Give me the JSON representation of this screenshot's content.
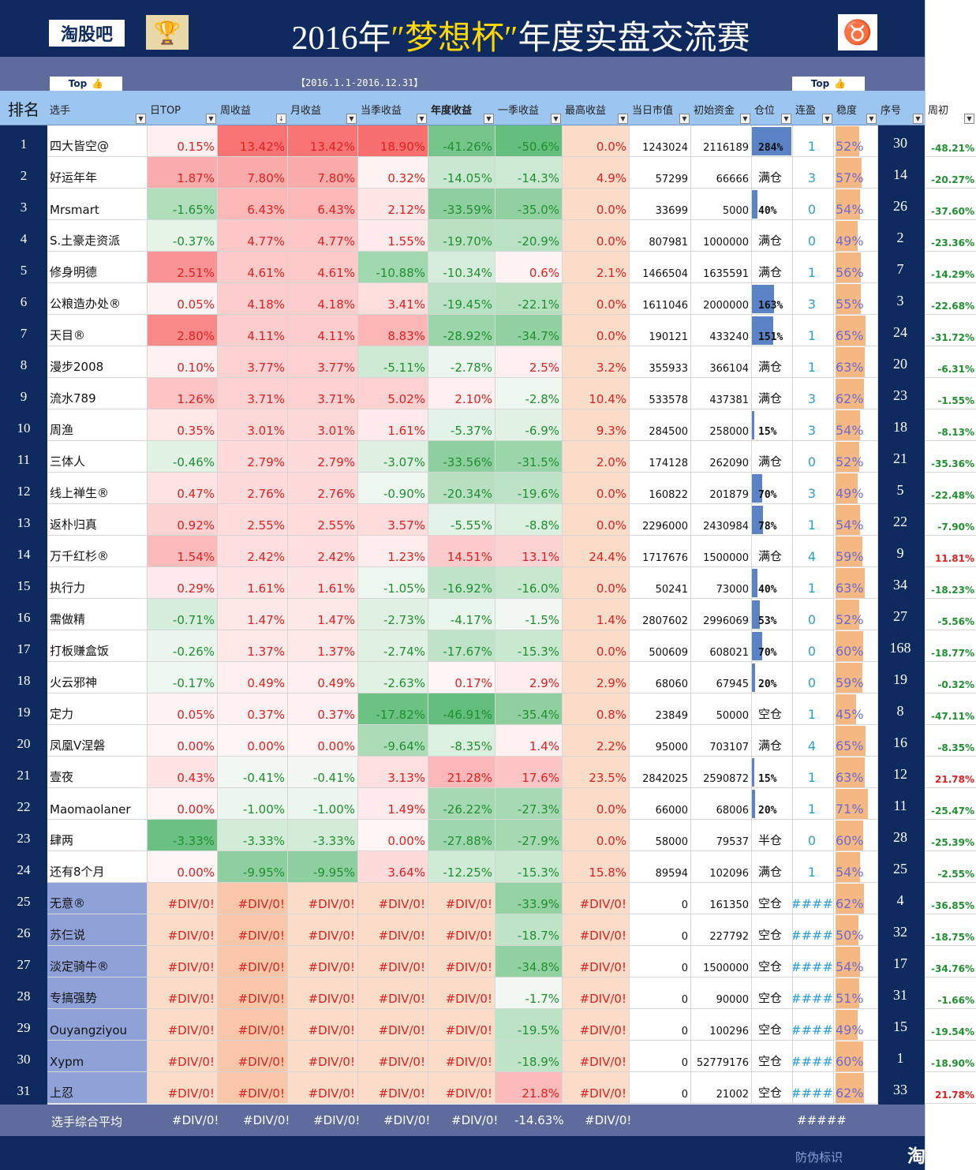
{
  "banner": {
    "logo_left": "淘股吧",
    "title_prefix": "2016年",
    "title_highlight": "″梦想杯″",
    "title_suffix": "年度实盘交流赛",
    "trophy_icon": "trophy-icon",
    "bull_icon": "bull-logo-icon"
  },
  "subbar": {
    "top_button_left": "Top",
    "date_range": "【2016.1.1-2016.12.31】",
    "top_button_right": "Top"
  },
  "headers": {
    "rank": "排名",
    "name": "选手",
    "day": "日TOP",
    "week": "周收益",
    "month": "月收益",
    "quarter": "当季收益",
    "year": "年度收益",
    "season1": "一季收益",
    "max": "最高收益",
    "market_value": "当日市值",
    "initial_capital": "初始资金",
    "position": "仓位",
    "win_streak": "连盈",
    "stability": "稳度",
    "seq": "序号",
    "week_start": "周初"
  },
  "rows": [
    {
      "rank": "1",
      "name": "四大皆空@",
      "day": "0.15%",
      "week": "13.42%",
      "month": "13.42%",
      "quarter": "18.90%",
      "year": "-41.26%",
      "s1": "-50.6%",
      "max": "0.0%",
      "mv": "1243024",
      "ic": "2116189",
      "pos": "284%",
      "posv": 1.0,
      "win": "1",
      "stab": "52%",
      "stabv": 0.52,
      "seq": "30",
      "wi": "-48.21%"
    },
    {
      "rank": "2",
      "name": "好运年年",
      "day": "1.87%",
      "week": "7.80%",
      "month": "7.80%",
      "quarter": "0.32%",
      "year": "-14.05%",
      "s1": "-14.3%",
      "max": "4.9%",
      "mv": "57299",
      "ic": "66666",
      "pos": "满仓",
      "posv": 0,
      "win": "3",
      "stab": "57%",
      "stabv": 0.57,
      "seq": "14",
      "wi": "-20.27%"
    },
    {
      "rank": "3",
      "name": "Mrsmart",
      "day": "-1.65%",
      "week": "6.43%",
      "month": "6.43%",
      "quarter": "2.12%",
      "year": "-33.59%",
      "s1": "-35.0%",
      "max": "0.0%",
      "mv": "33699",
      "ic": "5000",
      "pos": "40%",
      "posv": 0.14,
      "win": "0",
      "stab": "54%",
      "stabv": 0.54,
      "seq": "26",
      "wi": "-37.60%"
    },
    {
      "rank": "4",
      "name": "S.土豪走资派",
      "day": "-0.37%",
      "week": "4.77%",
      "month": "4.77%",
      "quarter": "1.55%",
      "year": "-19.70%",
      "s1": "-20.9%",
      "max": "0.0%",
      "mv": "807981",
      "ic": "1000000",
      "pos": "满仓",
      "posv": 0,
      "win": "0",
      "stab": "49%",
      "stabv": 0.49,
      "seq": "2",
      "wi": "-23.36%"
    },
    {
      "rank": "5",
      "name": "修身明德",
      "day": "2.51%",
      "week": "4.61%",
      "month": "4.61%",
      "quarter": "-10.88%",
      "year": "-10.34%",
      "s1": "0.6%",
      "max": "2.1%",
      "mv": "1466504",
      "ic": "1635591",
      "pos": "满仓",
      "posv": 0,
      "win": "1",
      "stab": "56%",
      "stabv": 0.56,
      "seq": "7",
      "wi": "-14.29%"
    },
    {
      "rank": "6",
      "name": "公粮造办处®",
      "day": "0.05%",
      "week": "4.18%",
      "month": "4.18%",
      "quarter": "3.41%",
      "year": "-19.45%",
      "s1": "-22.1%",
      "max": "0.0%",
      "mv": "1611046",
      "ic": "2000000",
      "pos": "163%",
      "posv": 0.57,
      "win": "3",
      "stab": "55%",
      "stabv": 0.55,
      "seq": "3",
      "wi": "-22.68%"
    },
    {
      "rank": "7",
      "name": "天目®",
      "day": "2.80%",
      "week": "4.11%",
      "month": "4.11%",
      "quarter": "8.83%",
      "year": "-28.92%",
      "s1": "-34.7%",
      "max": "0.0%",
      "mv": "190121",
      "ic": "433240",
      "pos": "151%",
      "posv": 0.53,
      "win": "1",
      "stab": "65%",
      "stabv": 0.65,
      "seq": "24",
      "wi": "-31.72%"
    },
    {
      "rank": "8",
      "name": "漫步2008",
      "day": "0.10%",
      "week": "3.77%",
      "month": "3.77%",
      "quarter": "-5.11%",
      "year": "-2.78%",
      "s1": "2.5%",
      "max": "3.2%",
      "mv": "355933",
      "ic": "366104",
      "pos": "满仓",
      "posv": 0,
      "win": "1",
      "stab": "63%",
      "stabv": 0.63,
      "seq": "20",
      "wi": "-6.31%"
    },
    {
      "rank": "9",
      "name": "流水789",
      "day": "1.26%",
      "week": "3.71%",
      "month": "3.71%",
      "quarter": "5.02%",
      "year": "2.10%",
      "s1": "-2.8%",
      "max": "10.4%",
      "mv": "533578",
      "ic": "437381",
      "pos": "满仓",
      "posv": 0,
      "win": "3",
      "stab": "62%",
      "stabv": 0.62,
      "seq": "23",
      "wi": "-1.55%"
    },
    {
      "rank": "10",
      "name": "周渔",
      "day": "0.35%",
      "week": "3.01%",
      "month": "3.01%",
      "quarter": "1.61%",
      "year": "-5.37%",
      "s1": "-6.9%",
      "max": "9.3%",
      "mv": "284500",
      "ic": "258000",
      "pos": "15%",
      "posv": 0.05,
      "win": "3",
      "stab": "54%",
      "stabv": 0.54,
      "seq": "18",
      "wi": "-8.13%"
    },
    {
      "rank": "11",
      "name": "三体人",
      "day": "-0.46%",
      "week": "2.79%",
      "month": "2.79%",
      "quarter": "-3.07%",
      "year": "-33.56%",
      "s1": "-31.5%",
      "max": "2.0%",
      "mv": "174128",
      "ic": "262090",
      "pos": "满仓",
      "posv": 0,
      "win": "0",
      "stab": "52%",
      "stabv": 0.52,
      "seq": "21",
      "wi": "-35.36%"
    },
    {
      "rank": "12",
      "name": "线上禅生®",
      "day": "0.47%",
      "week": "2.76%",
      "month": "2.76%",
      "quarter": "-0.90%",
      "year": "-20.34%",
      "s1": "-19.6%",
      "max": "0.0%",
      "mv": "160822",
      "ic": "201879",
      "pos": "70%",
      "posv": 0.25,
      "win": "3",
      "stab": "49%",
      "stabv": 0.49,
      "seq": "5",
      "wi": "-22.48%"
    },
    {
      "rank": "13",
      "name": "返朴归真",
      "day": "0.92%",
      "week": "2.55%",
      "month": "2.55%",
      "quarter": "3.57%",
      "year": "-5.55%",
      "s1": "-8.8%",
      "max": "0.0%",
      "mv": "2296000",
      "ic": "2430984",
      "pos": "78%",
      "posv": 0.27,
      "win": "1",
      "stab": "54%",
      "stabv": 0.54,
      "seq": "22",
      "wi": "-7.90%"
    },
    {
      "rank": "14",
      "name": "万千红杉®",
      "day": "1.54%",
      "week": "2.42%",
      "month": "2.42%",
      "quarter": "1.23%",
      "year": "14.51%",
      "s1": "13.1%",
      "max": "24.4%",
      "mv": "1717676",
      "ic": "1500000",
      "pos": "满仓",
      "posv": 0,
      "win": "4",
      "stab": "59%",
      "stabv": 0.59,
      "seq": "9",
      "wi": "11.81%"
    },
    {
      "rank": "15",
      "name": "执行力",
      "day": "0.29%",
      "week": "1.61%",
      "month": "1.61%",
      "quarter": "-1.05%",
      "year": "-16.92%",
      "s1": "-16.0%",
      "max": "0.0%",
      "mv": "50241",
      "ic": "73000",
      "pos": "40%",
      "posv": 0.14,
      "win": "1",
      "stab": "63%",
      "stabv": 0.63,
      "seq": "34",
      "wi": "-18.23%"
    },
    {
      "rank": "16",
      "name": "需做精",
      "day": "-0.71%",
      "week": "1.47%",
      "month": "1.47%",
      "quarter": "-2.73%",
      "year": "-4.17%",
      "s1": "-1.5%",
      "max": "1.4%",
      "mv": "2807602",
      "ic": "2996069",
      "pos": "53%",
      "posv": 0.19,
      "win": "0",
      "stab": "52%",
      "stabv": 0.52,
      "seq": "27",
      "wi": "-5.56%"
    },
    {
      "rank": "17",
      "name": "打板赚盒饭",
      "day": "-0.26%",
      "week": "1.37%",
      "month": "1.37%",
      "quarter": "-2.74%",
      "year": "-17.67%",
      "s1": "-15.3%",
      "max": "0.0%",
      "mv": "500609",
      "ic": "608021",
      "pos": "70%",
      "posv": 0.25,
      "win": "0",
      "stab": "60%",
      "stabv": 0.6,
      "seq": "168",
      "wi": "-18.77%"
    },
    {
      "rank": "18",
      "name": "火云邪神",
      "day": "-0.17%",
      "week": "0.49%",
      "month": "0.49%",
      "quarter": "-2.63%",
      "year": "0.17%",
      "s1": "2.9%",
      "max": "2.9%",
      "mv": "68060",
      "ic": "67945",
      "pos": "20%",
      "posv": 0.07,
      "win": "0",
      "stab": "59%",
      "stabv": 0.59,
      "seq": "19",
      "wi": "-0.32%"
    },
    {
      "rank": "19",
      "name": "定力",
      "day": "0.05%",
      "week": "0.37%",
      "month": "0.37%",
      "quarter": "-17.82%",
      "year": "-46.91%",
      "s1": "-35.4%",
      "max": "0.8%",
      "mv": "23849",
      "ic": "50000",
      "pos": "空仓",
      "posv": 0,
      "win": "1",
      "stab": "45%",
      "stabv": 0.45,
      "seq": "8",
      "wi": "-47.11%"
    },
    {
      "rank": "20",
      "name": "凤凰V涅磐",
      "day": "0.00%",
      "week": "0.00%",
      "month": "0.00%",
      "quarter": "-9.64%",
      "year": "-8.35%",
      "s1": "1.4%",
      "max": "2.2%",
      "mv": "95000",
      "ic": "703107",
      "pos": "满仓",
      "posv": 0,
      "win": "4",
      "stab": "65%",
      "stabv": 0.65,
      "seq": "16",
      "wi": "-8.35%"
    },
    {
      "rank": "21",
      "name": "壹夜",
      "day": "0.43%",
      "week": "-0.41%",
      "month": "-0.41%",
      "quarter": "3.13%",
      "year": "21.28%",
      "s1": "17.6%",
      "max": "23.5%",
      "mv": "2842025",
      "ic": "2590872",
      "pos": "15%",
      "posv": 0.05,
      "win": "1",
      "stab": "63%",
      "stabv": 0.63,
      "seq": "12",
      "wi": "21.78%"
    },
    {
      "rank": "22",
      "name": "Maomaolaner",
      "day": "0.00%",
      "week": "-1.00%",
      "month": "-1.00%",
      "quarter": "1.49%",
      "year": "-26.22%",
      "s1": "-27.3%",
      "max": "0.0%",
      "mv": "66000",
      "ic": "68006",
      "pos": "20%",
      "posv": 0.07,
      "win": "1",
      "stab": "71%",
      "stabv": 0.71,
      "seq": "11",
      "wi": "-25.47%"
    },
    {
      "rank": "23",
      "name": "肆两",
      "day": "-3.33%",
      "week": "-3.33%",
      "month": "-3.33%",
      "quarter": "0.00%",
      "year": "-27.88%",
      "s1": "-27.9%",
      "max": "0.0%",
      "mv": "58000",
      "ic": "79537",
      "pos": "半仓",
      "posv": 0,
      "win": "0",
      "stab": "60%",
      "stabv": 0.6,
      "seq": "28",
      "wi": "-25.39%"
    },
    {
      "rank": "24",
      "name": "还有8个月",
      "day": "0.00%",
      "week": "-9.95%",
      "month": "-9.95%",
      "quarter": "3.64%",
      "year": "-12.25%",
      "s1": "-15.3%",
      "max": "15.8%",
      "mv": "89594",
      "ic": "102096",
      "pos": "满仓",
      "posv": 0,
      "win": "1",
      "stab": "54%",
      "stabv": 0.54,
      "seq": "25",
      "wi": "-2.55%"
    },
    {
      "rank": "25",
      "name": "无意®",
      "day": "#DIV/0!",
      "week": "#DIV/0!",
      "month": "#DIV/0!",
      "quarter": "#DIV/0!",
      "year": "#DIV/0!",
      "s1": "-33.9%",
      "max": "#DIV/0!",
      "mv": "0",
      "ic": "161350",
      "pos": "空仓",
      "posv": 0,
      "win": "####",
      "stab": "62%",
      "stabv": 0.62,
      "seq": "4",
      "wi": "-36.85%"
    },
    {
      "rank": "26",
      "name": "苏仨说",
      "day": "#DIV/0!",
      "week": "#DIV/0!",
      "month": "#DIV/0!",
      "quarter": "#DIV/0!",
      "year": "#DIV/0!",
      "s1": "-18.7%",
      "max": "#DIV/0!",
      "mv": "0",
      "ic": "227792",
      "pos": "空仓",
      "posv": 0,
      "win": "####",
      "stab": "50%",
      "stabv": 0.5,
      "seq": "32",
      "wi": "-18.75%"
    },
    {
      "rank": "27",
      "name": "淡定骑牛®",
      "day": "#DIV/0!",
      "week": "#DIV/0!",
      "month": "#DIV/0!",
      "quarter": "#DIV/0!",
      "year": "#DIV/0!",
      "s1": "-34.8%",
      "max": "#DIV/0!",
      "mv": "0",
      "ic": "1500000",
      "pos": "空仓",
      "posv": 0,
      "win": "####",
      "stab": "54%",
      "stabv": 0.54,
      "seq": "17",
      "wi": "-34.76%"
    },
    {
      "rank": "28",
      "name": "专搞强势",
      "day": "#DIV/0!",
      "week": "#DIV/0!",
      "month": "#DIV/0!",
      "quarter": "#DIV/0!",
      "year": "#DIV/0!",
      "s1": "-1.7%",
      "max": "#DIV/0!",
      "mv": "0",
      "ic": "90000",
      "pos": "空仓",
      "posv": 0,
      "win": "####",
      "stab": "51%",
      "stabv": 0.51,
      "seq": "31",
      "wi": "-1.66%"
    },
    {
      "rank": "29",
      "name": "Ouyangziyou",
      "day": "#DIV/0!",
      "week": "#DIV/0!",
      "month": "#DIV/0!",
      "quarter": "#DIV/0!",
      "year": "#DIV/0!",
      "s1": "-19.5%",
      "max": "#DIV/0!",
      "mv": "0",
      "ic": "100296",
      "pos": "空仓",
      "posv": 0,
      "win": "####",
      "stab": "49%",
      "stabv": 0.49,
      "seq": "15",
      "wi": "-19.54%"
    },
    {
      "rank": "30",
      "name": "Xypm",
      "day": "#DIV/0!",
      "week": "#DIV/0!",
      "month": "#DIV/0!",
      "quarter": "#DIV/0!",
      "year": "#DIV/0!",
      "s1": "-18.9%",
      "max": "#DIV/0!",
      "mv": "0",
      "ic": "52779176",
      "pos": "空仓",
      "posv": 0,
      "win": "####",
      "stab": "60%",
      "stabv": 0.6,
      "seq": "1",
      "wi": "-18.90%"
    },
    {
      "rank": "31",
      "name": "上忍",
      "day": "#DIV/0!",
      "week": "#DIV/0!",
      "month": "#DIV/0!",
      "quarter": "#DIV/0!",
      "year": "#DIV/0!",
      "s1": "21.8%",
      "max": "#DIV/0!",
      "mv": "0",
      "ic": "21002",
      "pos": "空仓",
      "posv": 0,
      "win": "####",
      "stab": "62%",
      "stabv": 0.62,
      "seq": "33",
      "wi": "21.78%"
    }
  ],
  "footer": {
    "label": "选手综合平均",
    "day": "#DIV/0!",
    "week": "#DIV/0!",
    "month": "#DIV/0!",
    "quarter": "#DIV/0!",
    "year": "#DIV/0!",
    "s1": "-14.63%",
    "max": "#DIV/0!",
    "win": "#####"
  },
  "bottom": {
    "anti_fake": "防伪标识",
    "logo": "淘股吧"
  },
  "colors": {
    "navy": "#0e2a5f",
    "header_blue": "#9cc6f0",
    "band": "#5e6b9c",
    "position_bar": "#5b82c4",
    "stability_bar": "#f6b882",
    "positive_text": "#e02020",
    "negative_text": "#1f8f2f"
  }
}
